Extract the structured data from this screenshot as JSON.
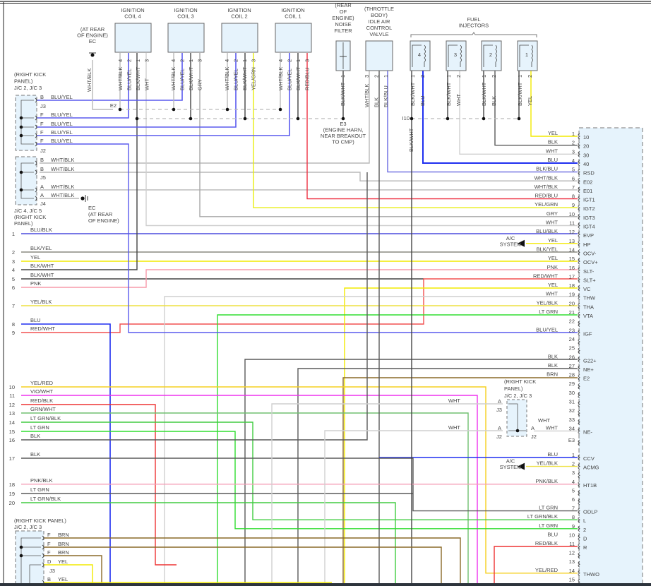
{
  "wire_colors": {
    "YEL": "#f2ea00",
    "BLK": "#5a5a5a",
    "WHT": "#cfcfcf",
    "BLU": "#1f2ff0",
    "BLK/BLU": "#6a6ae0",
    "WHT/BLK": "#b8b8b8",
    "RED/BLU": "#ee3344",
    "YEL/GRN": "#e8ee10",
    "GRY": "#a8a8a8",
    "BLU/BLK": "#4b4bdd",
    "BLK/YEL": "#8a8a80",
    "BLK/WHT": "#444444",
    "PNK": "#f79aaa",
    "RED/WHT": "#f25050",
    "YEL/BLK": "#eee040",
    "LT GRN": "#30dd30",
    "BLU/YEL": "#5a5aee",
    "BRN": "#8a6a28",
    "YEL/RED": "#f5d020",
    "VIO/WHT": "#ee33ee",
    "RED/BLK": "#ee3333",
    "GRN/WHT": "#70c070",
    "LT GRN/BLK": "#40cc40",
    "PNK/BLK": "#f5a0b8"
  },
  "component_fill": "#e6f3fc",
  "ignition_coils": [
    {
      "title": [
        "IGNITION",
        "COIL 4"
      ],
      "pins": [
        [
          "4",
          "WHT/BLK"
        ],
        [
          "2",
          "BLU/YEL"
        ],
        [
          "1",
          "BLK/WHT"
        ],
        [
          "3",
          "WHT"
        ]
      ]
    },
    {
      "title": [
        "IGNITION",
        "COIL 3"
      ],
      "pins": [
        [
          "4",
          "WHT/BLK"
        ],
        [
          "2",
          "BLU/YEL"
        ],
        [
          "1",
          "BLK/WHT"
        ],
        [
          "3",
          "GRY"
        ]
      ]
    },
    {
      "title": [
        "IGNITION",
        "COIL 2"
      ],
      "pins": [
        [
          "4",
          "WHT/BLK"
        ],
        [
          "2",
          "BLU/YEL"
        ],
        [
          "1",
          "BLK/WHT"
        ],
        [
          "3",
          "YEL/GRN"
        ]
      ]
    },
    {
      "title": [
        "IGNITION",
        "COIL 1"
      ],
      "pins": [
        [
          "4",
          "WHT/BLK"
        ],
        [
          "2",
          "BLU/YEL"
        ],
        [
          "1",
          "BLK/WHT"
        ],
        [
          "3",
          "RED/BLU"
        ]
      ]
    }
  ],
  "noise_filter": {
    "title": [
      "(REAR",
      "OF",
      "ENGINE)",
      "NOISE",
      "FILTER"
    ],
    "pins": [
      [
        "1",
        "BLK/WHT"
      ]
    ]
  },
  "idle_air_valve": {
    "title": [
      "(THROTTLE",
      "BODY)",
      "IDLE AIR",
      "CONTROL",
      "VALVLE"
    ],
    "pins": [
      [
        "3",
        "WHT/BLK"
      ],
      [
        "2",
        "BLK"
      ],
      [
        "1",
        "BLK/BLU"
      ]
    ]
  },
  "fuel_injectors": {
    "title": [
      "FUEL",
      "INJECTORS"
    ],
    "items": [
      {
        "num": "4",
        "pins": [
          [
            "1",
            "BLK/WHT"
          ],
          [
            "2",
            "BLU"
          ]
        ]
      },
      {
        "num": "3",
        "pins": [
          [
            "1",
            "BLK/WHT"
          ],
          [
            "2",
            "WHT"
          ]
        ]
      },
      {
        "num": "2",
        "pins": [
          [
            "1",
            "BLK/WHT"
          ],
          [
            "2",
            "BLK"
          ]
        ]
      },
      {
        "num": "1",
        "pins": [
          [
            "1",
            "BLK/WHT"
          ],
          [
            "2",
            "YEL"
          ]
        ]
      }
    ]
  },
  "ground_ec_top": {
    "label": [
      "(AT REAR",
      "OF ENGINE)",
      "EC"
    ],
    "wire": "WHT/BLK"
  },
  "ground_ec_left": {
    "label": [
      "EC",
      "(AT REAR",
      "OF ENGINE)"
    ]
  },
  "splices": {
    "e2": "E2",
    "e3": [
      "E3",
      "(ENGINE HARN,",
      "NEAR BREAKOUT",
      "TO CMP)"
    ],
    "i10": "I10",
    "i10_wire": "BLK/WHT"
  },
  "junction_blocks": {
    "jb1": {
      "label": [
        "(RIGHT KICK",
        "PANEL)",
        "J/C 2, J/C 3"
      ],
      "terms": [
        [
          "B",
          "BLU/YEL"
        ],
        [
          "F",
          "BLU/YEL"
        ],
        [
          "F",
          "BLU/YEL"
        ],
        [
          "F",
          "BLU/YEL"
        ],
        [
          "F",
          "BLU/YEL"
        ]
      ],
      "ids": [
        "J3",
        "J2"
      ]
    },
    "jb2": {
      "label": [
        "J/C 4, J/C 5",
        "(RIGHT KICK",
        "PANEL)"
      ],
      "terms": [
        [
          "B",
          "WHT/BLK"
        ],
        [
          "B",
          "WHT/BLK"
        ],
        [
          "A",
          "WHT/BLK"
        ],
        [
          "A",
          "WHT/BLK"
        ]
      ],
      "ids": [
        "J5",
        "J4"
      ]
    },
    "jb3": {
      "label": [
        "(RIGHT KICK PANEL)",
        "J/C 2, J/C 3"
      ],
      "terms": [
        [
          "F",
          "BRN"
        ],
        [
          "F",
          "BRN"
        ],
        [
          "F",
          "BRN"
        ],
        [
          "D",
          "YEL"
        ],
        [
          "B",
          "YEL"
        ]
      ],
      "ids": [
        "J3"
      ]
    },
    "jb4": {
      "label": [
        "(RIGHT KICK",
        "PANEL)",
        "J/C 2, J/C 3"
      ],
      "terms": [
        [
          "A",
          "WHT"
        ],
        [
          "A",
          "WHT"
        ],
        [
          "A",
          "WHT"
        ]
      ],
      "ids": [
        "J3",
        "J2",
        "J2"
      ]
    }
  },
  "left_connector": [
    {
      "num": "1",
      "wire": "BLU/BLK"
    },
    {
      "num": "2",
      "wire": "BLK/YEL"
    },
    {
      "num": "3",
      "wire": "YEL"
    },
    {
      "num": "4",
      "wire": "BLK/WHT"
    },
    {
      "num": "5",
      "wire": "BLK/WHT"
    },
    {
      "num": "6",
      "wire": "PNK"
    },
    {
      "num": "7",
      "wire": "YEL/BLK"
    },
    {
      "num": "8",
      "wire": "BLU"
    },
    {
      "num": "9",
      "wire": "RED/WHT"
    },
    {
      "num": "10",
      "wire": "YEL/RED"
    },
    {
      "num": "11",
      "wire": "VIO/WHT"
    },
    {
      "num": "12",
      "wire": "RED/BLK"
    },
    {
      "num": "13",
      "wire": "GRN/WHT"
    },
    {
      "num": "14",
      "wire": "LT GRN/BLK"
    },
    {
      "num": "15",
      "wire": "LT GRN"
    },
    {
      "num": "16",
      "wire": "BLK"
    },
    {
      "num": "17",
      "wire": "BLK"
    },
    {
      "num": "18",
      "wire": "PNK/BLK"
    },
    {
      "num": "19",
      "wire": "LT GRN"
    },
    {
      "num": "20",
      "wire": "LT GRN/BLK"
    }
  ],
  "ac_system": {
    "label": [
      "A/C",
      "SYSTEM"
    ]
  },
  "ecm_connector_a": [
    {
      "pin": "1",
      "wire": "YEL",
      "func": "10"
    },
    {
      "pin": "2",
      "wire": "BLK",
      "func": "20"
    },
    {
      "pin": "3",
      "wire": "WHT",
      "func": "30"
    },
    {
      "pin": "4",
      "wire": "BLU",
      "func": "40"
    },
    {
      "pin": "5",
      "wire": "BLK/BLU",
      "func": "RSD"
    },
    {
      "pin": "6",
      "wire": "WHT/BLK",
      "func": "E02"
    },
    {
      "pin": "7",
      "wire": "WHT/BLK",
      "func": "E01"
    },
    {
      "pin": "8",
      "wire": "RED/BLU",
      "func": "IGT1"
    },
    {
      "pin": "9",
      "wire": "YEL/GRN",
      "func": "IGT2"
    },
    {
      "pin": "10",
      "wire": "GRY",
      "func": "IGT3"
    },
    {
      "pin": "11",
      "wire": "WHT",
      "func": "IGT4"
    },
    {
      "pin": "12",
      "wire": "BLU/BLK",
      "func": "EVP"
    },
    {
      "pin": "13",
      "wire": "YEL",
      "func": "HP"
    },
    {
      "pin": "14",
      "wire": "BLK/YEL",
      "func": "OCV-"
    },
    {
      "pin": "15",
      "wire": "YEL",
      "func": "OCV+"
    },
    {
      "pin": "16",
      "wire": "PNK",
      "func": "SLT-"
    },
    {
      "pin": "17",
      "wire": "RED/WHT",
      "func": "SLT+"
    },
    {
      "pin": "18",
      "wire": "YEL",
      "func": "VC"
    },
    {
      "pin": "19",
      "wire": "WHT",
      "func": "THW"
    },
    {
      "pin": "20",
      "wire": "YEL/BLK",
      "func": "THA"
    },
    {
      "pin": "21",
      "wire": "LT GRN",
      "func": "VTA"
    },
    {
      "pin": "22",
      "wire": "",
      "func": ""
    },
    {
      "pin": "23",
      "wire": "BLU/YEL",
      "func": "IGF"
    },
    {
      "pin": "24",
      "wire": "",
      "func": ""
    },
    {
      "pin": "25",
      "wire": "",
      "func": ""
    },
    {
      "pin": "26",
      "wire": "BLK",
      "func": "G22+"
    },
    {
      "pin": "27",
      "wire": "BLK",
      "func": "NE+"
    },
    {
      "pin": "28",
      "wire": "BRN",
      "func": "E2"
    },
    {
      "pin": "29",
      "wire": "",
      "func": ""
    },
    {
      "pin": "30",
      "wire": "",
      "func": ""
    },
    {
      "pin": "31",
      "wire": "",
      "func": ""
    },
    {
      "pin": "32",
      "wire": "",
      "func": ""
    },
    {
      "pin": "33",
      "wire": "",
      "func": ""
    },
    {
      "pin": "34",
      "wire": "WHT",
      "func": "NE-"
    },
    {
      "pin": "E3",
      "wire": "",
      "func": ""
    }
  ],
  "ecm_connector_b": [
    {
      "pin": "1",
      "wire": "BLU",
      "func": "CCV"
    },
    {
      "pin": "2",
      "wire": "YEL/BLK",
      "func": "ACMG"
    },
    {
      "pin": "3",
      "wire": "",
      "func": ""
    },
    {
      "pin": "4",
      "wire": "PNK/BLK",
      "func": "HT1B"
    },
    {
      "pin": "5",
      "wire": "",
      "func": ""
    },
    {
      "pin": "6",
      "wire": "",
      "func": ""
    },
    {
      "pin": "7",
      "wire": "LT GRN",
      "func": "ODLP"
    },
    {
      "pin": "8",
      "wire": "LT GRN/BLK",
      "func": "L"
    },
    {
      "pin": "9",
      "wire": "LT GRN",
      "func": "2"
    },
    {
      "pin": "10",
      "wire": "BLU",
      "func": "D"
    },
    {
      "pin": "11",
      "wire": "RED/BLK",
      "func": "R"
    },
    {
      "pin": "12",
      "wire": "",
      "func": ""
    },
    {
      "pin": "13",
      "wire": "",
      "func": ""
    },
    {
      "pin": "14",
      "wire": "YEL/RED",
      "func": "THWO"
    },
    {
      "pin": "15",
      "wire": "",
      "func": ""
    }
  ],
  "wire_labels": {
    "jb4_left1": "WHT",
    "jb4_left2": "WHT",
    "jb4_right": "WHT"
  }
}
